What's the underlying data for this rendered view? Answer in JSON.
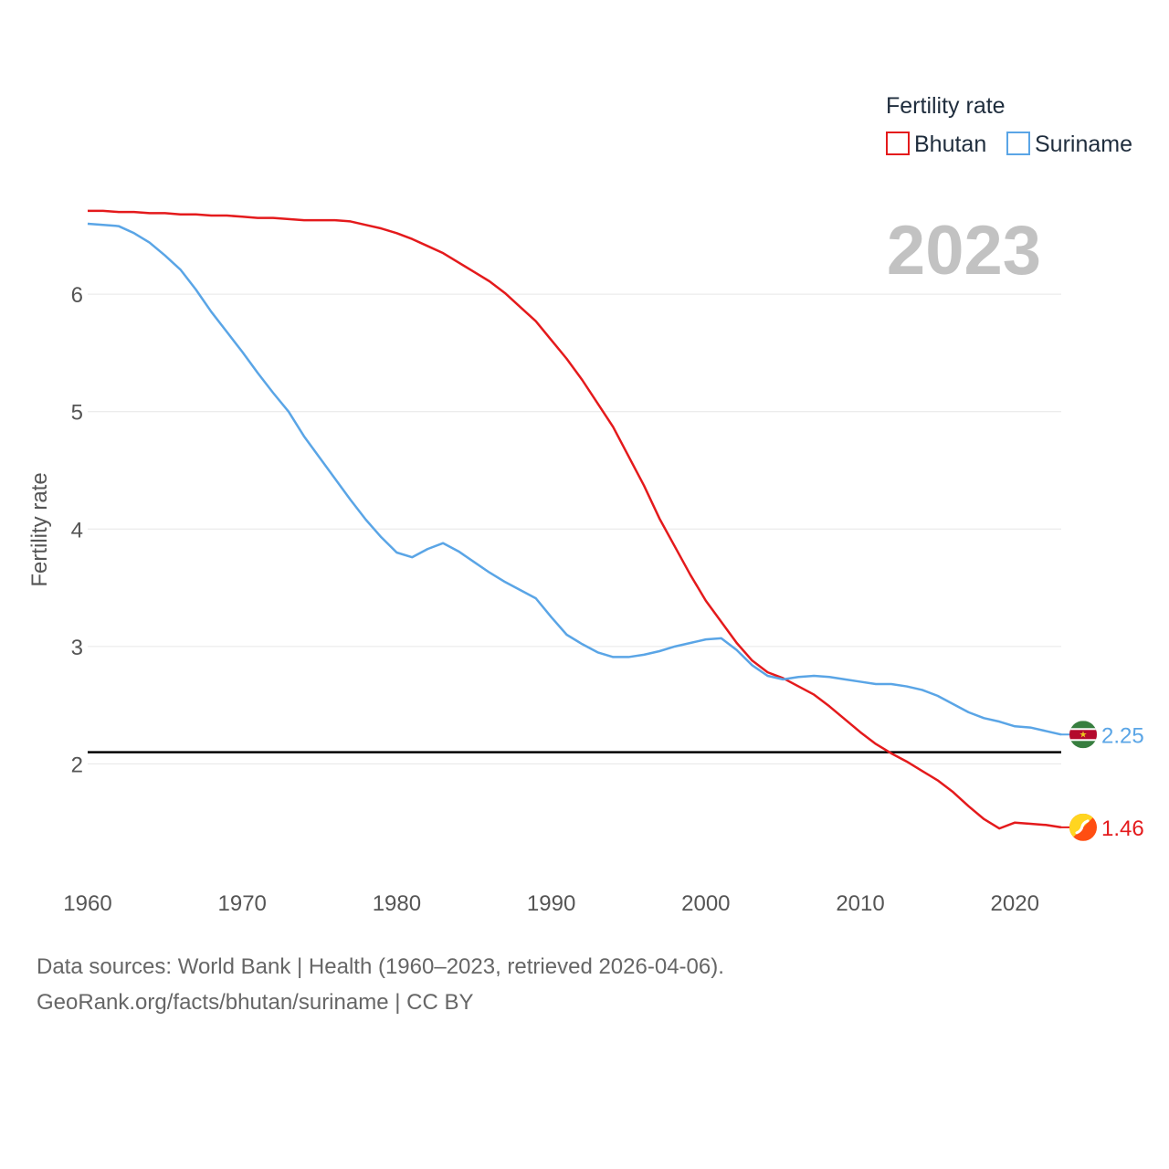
{
  "chart_data": {
    "type": "line",
    "title": "",
    "ylabel": "Fertility rate",
    "xlabel": "",
    "xlim": [
      1960,
      2023
    ],
    "ylim": [
      1.0,
      6.95
    ],
    "xticks": [
      1960,
      1970,
      1980,
      1990,
      2000,
      2010,
      2020
    ],
    "yticks": [
      2,
      3,
      4,
      5,
      6
    ],
    "reference_line": 2.1,
    "year_label": "2023",
    "legend": {
      "title": "Fertility rate",
      "position": "top-right"
    },
    "series": [
      {
        "name": "Bhutan",
        "color": "#e41a1c",
        "flag_icon": "bhutan-flag-icon",
        "end_label": "1.46",
        "x": [
          1960,
          1961,
          1962,
          1963,
          1964,
          1965,
          1966,
          1967,
          1968,
          1969,
          1970,
          1971,
          1972,
          1973,
          1974,
          1975,
          1976,
          1977,
          1978,
          1979,
          1980,
          1981,
          1982,
          1983,
          1984,
          1985,
          1986,
          1987,
          1988,
          1989,
          1990,
          1991,
          1992,
          1993,
          1994,
          1995,
          1996,
          1997,
          1998,
          1999,
          2000,
          2001,
          2002,
          2003,
          2004,
          2005,
          2006,
          2007,
          2008,
          2009,
          2010,
          2011,
          2012,
          2013,
          2014,
          2015,
          2016,
          2017,
          2018,
          2019,
          2020,
          2021,
          2022,
          2023
        ],
        "values": [
          6.71,
          6.71,
          6.7,
          6.7,
          6.69,
          6.69,
          6.68,
          6.68,
          6.67,
          6.67,
          6.66,
          6.65,
          6.65,
          6.64,
          6.63,
          6.63,
          6.63,
          6.62,
          6.59,
          6.56,
          6.52,
          6.47,
          6.41,
          6.35,
          6.27,
          6.19,
          6.11,
          6.01,
          5.89,
          5.77,
          5.61,
          5.45,
          5.27,
          5.07,
          4.87,
          4.62,
          4.37,
          4.09,
          3.85,
          3.61,
          3.39,
          3.21,
          3.03,
          2.88,
          2.78,
          2.73,
          2.66,
          2.59,
          2.49,
          2.38,
          2.27,
          2.17,
          2.09,
          2.02,
          1.94,
          1.86,
          1.76,
          1.64,
          1.53,
          1.45,
          1.5,
          1.49,
          1.48,
          1.46
        ]
      },
      {
        "name": "Suriname",
        "color": "#5aa5e6",
        "flag_icon": "suriname-flag-icon",
        "end_label": "2.25",
        "x": [
          1960,
          1961,
          1962,
          1963,
          1964,
          1965,
          1966,
          1967,
          1968,
          1969,
          1970,
          1971,
          1972,
          1973,
          1974,
          1975,
          1976,
          1977,
          1978,
          1979,
          1980,
          1981,
          1982,
          1983,
          1984,
          1985,
          1986,
          1987,
          1988,
          1989,
          1990,
          1991,
          1992,
          1993,
          1994,
          1995,
          1996,
          1997,
          1998,
          1999,
          2000,
          2001,
          2002,
          2003,
          2004,
          2005,
          2006,
          2007,
          2008,
          2009,
          2010,
          2011,
          2012,
          2013,
          2014,
          2015,
          2016,
          2017,
          2018,
          2019,
          2020,
          2021,
          2022,
          2023
        ],
        "values": [
          6.6,
          6.59,
          6.58,
          6.52,
          6.44,
          6.33,
          6.21,
          6.04,
          5.85,
          5.68,
          5.51,
          5.33,
          5.16,
          5.0,
          4.79,
          4.61,
          4.43,
          4.25,
          4.08,
          3.93,
          3.8,
          3.76,
          3.83,
          3.88,
          3.81,
          3.72,
          3.63,
          3.55,
          3.48,
          3.41,
          3.25,
          3.1,
          3.02,
          2.95,
          2.91,
          2.91,
          2.93,
          2.96,
          3.0,
          3.03,
          3.06,
          3.07,
          2.97,
          2.84,
          2.75,
          2.72,
          2.74,
          2.75,
          2.74,
          2.72,
          2.7,
          2.68,
          2.68,
          2.66,
          2.63,
          2.58,
          2.51,
          2.44,
          2.39,
          2.36,
          2.32,
          2.31,
          2.28,
          2.25
        ]
      }
    ]
  },
  "footer": {
    "line1": "Data sources: World Bank | Health (1960–2023, retrieved 2026-04-06).",
    "line2": "GeoRank.org/facts/bhutan/suriname | CC BY"
  }
}
